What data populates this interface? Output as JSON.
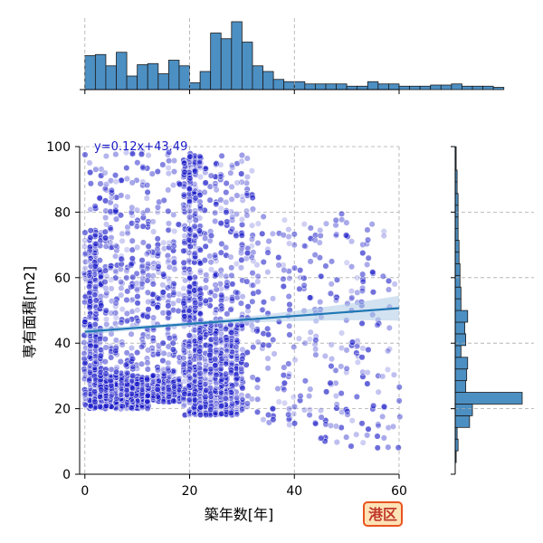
{
  "chart_data": {
    "type": "scatter",
    "title": "",
    "xlabel": "築年数[年]",
    "ylabel": "専有面積[m2]",
    "xlim": [
      -1,
      60
    ],
    "ylim": [
      0,
      100
    ],
    "xticks": [
      0,
      20,
      40,
      60
    ],
    "yticks": [
      0,
      20,
      40,
      60,
      80,
      100
    ],
    "grid": true,
    "point_color": "#1a1ac8",
    "regression": {
      "label": "y=0.12x+43.49",
      "slope": 0.12,
      "intercept": 43.49,
      "color": "#1f77b4",
      "ci_color": "#aecbe6"
    },
    "badge": {
      "text": "港区",
      "fill": "#fde3b6",
      "border": "#e8531f"
    },
    "clusters": [
      {
        "x": [
          0,
          3
        ],
        "y": [
          20,
          75
        ],
        "n": 330
      },
      {
        "x": [
          3,
          12
        ],
        "y": [
          20,
          30
        ],
        "n": 380
      },
      {
        "x": [
          12,
          18
        ],
        "y": [
          22,
          30
        ],
        "n": 200
      },
      {
        "x": [
          3,
          18
        ],
        "y": [
          30,
          80
        ],
        "n": 360
      },
      {
        "x": [
          19,
          22
        ],
        "y": [
          18,
          98
        ],
        "n": 420
      },
      {
        "x": [
          22,
          30
        ],
        "y": [
          18,
          45
        ],
        "n": 380
      },
      {
        "x": [
          22,
          32
        ],
        "y": [
          45,
          98
        ],
        "n": 200
      },
      {
        "x": [
          30,
          45
        ],
        "y": [
          15,
          80
        ],
        "n": 170
      },
      {
        "x": [
          45,
          60
        ],
        "y": [
          8,
          80
        ],
        "n": 150
      },
      {
        "x": [
          0,
          18
        ],
        "y": [
          80,
          99
        ],
        "n": 80
      }
    ],
    "top_histogram": {
      "bin_start": 0,
      "bin_width": 2,
      "counts": [
        30,
        31,
        21,
        33,
        12,
        22,
        23,
        14,
        26,
        21,
        6,
        16,
        50,
        45,
        60,
        42,
        21,
        16,
        9,
        7,
        7,
        5,
        5,
        5,
        5,
        3,
        3,
        7,
        5,
        5,
        3,
        3,
        3,
        4,
        4,
        5,
        3,
        3,
        3,
        2
      ]
    },
    "right_histogram": {
      "bin_start": 0,
      "bin_width": 3.57,
      "counts": [
        0,
        1,
        3,
        2,
        15,
        18,
        70,
        11,
        12,
        13,
        6,
        11,
        10,
        13,
        6,
        6,
        5,
        5,
        4,
        4,
        3,
        3,
        3,
        3,
        2,
        2,
        1,
        1
      ]
    }
  }
}
